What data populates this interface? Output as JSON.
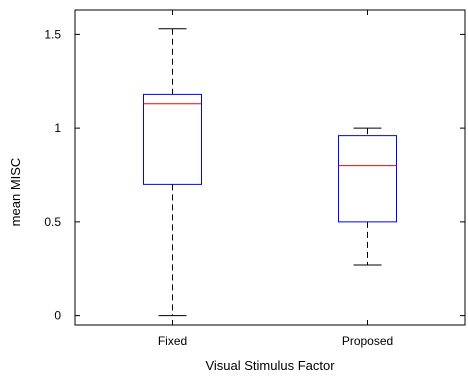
{
  "chart_data": {
    "type": "box",
    "title": "",
    "xlabel": "Visual Stimulus Factor",
    "ylabel": "mean MISC",
    "categories": [
      "Fixed",
      "Proposed"
    ],
    "boxes": [
      {
        "category": "Fixed",
        "whisker_low": 0.0,
        "q1": 0.7,
        "median": 1.13,
        "q3": 1.18,
        "whisker_high": 1.53
      },
      {
        "category": "Proposed",
        "whisker_low": 0.27,
        "q1": 0.5,
        "median": 0.8,
        "q3": 0.96,
        "whisker_high": 1.0
      }
    ],
    "ylim": [
      -0.05,
      1.63
    ],
    "yticks": [
      0,
      0.5,
      1,
      1.5
    ],
    "ytick_labels": [
      "0",
      "0.5",
      "1",
      "1.5"
    ],
    "grid": false,
    "colors": {
      "box": "#0000ff",
      "median": "#ff0000",
      "whisker": "#000000"
    }
  }
}
